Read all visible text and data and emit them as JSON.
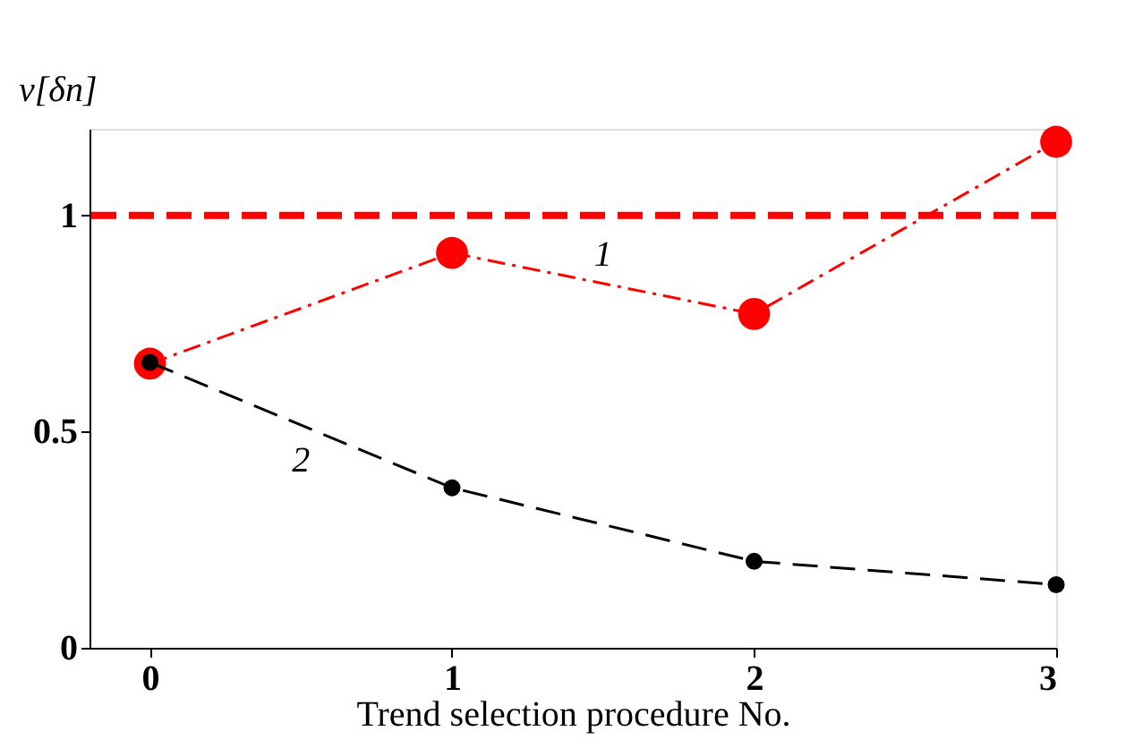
{
  "chart_data": {
    "type": "line",
    "xlabel": "Trend selection procedure No.",
    "ylabel": "ν[δn]",
    "x": [
      0,
      1,
      2,
      3
    ],
    "series": [
      {
        "name": "1",
        "color": "#ff0000",
        "values": [
          0.657,
          0.913,
          0.772,
          1.17
        ],
        "line_style": "dashdot",
        "marker": "circle"
      },
      {
        "name": "2",
        "color": "#000000",
        "values": [
          0.66,
          0.37,
          0.2,
          0.146
        ],
        "line_style": "dashed",
        "marker": "circle"
      }
    ],
    "xlim": [
      -0.2,
      3
    ],
    "xticks": [
      0,
      1,
      2,
      3
    ],
    "ylim": [
      0,
      1.2
    ],
    "yticks": [
      0,
      0.5,
      1
    ],
    "ref_lines": [
      {
        "axis": "y",
        "value": 1,
        "color": "#ff0000",
        "line_style": "dashed"
      }
    ],
    "grid": false,
    "legend": false
  }
}
